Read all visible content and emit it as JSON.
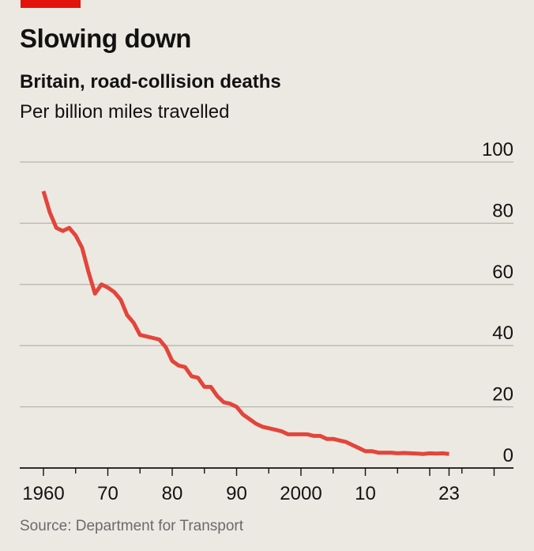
{
  "header": {
    "title": "Slowing down",
    "subtitle": "Britain, road-collision deaths",
    "unit": "Per billion miles travelled",
    "accent_color": "#e3120b"
  },
  "footer": {
    "source": "Source: Department for Transport"
  },
  "chart_data": {
    "type": "line",
    "title": "Slowing down",
    "subtitle": "Britain, road-collision deaths",
    "ylabel": "Per billion miles travelled",
    "xlabel": "",
    "xlim": [
      1959,
      2034
    ],
    "ylim": [
      0,
      100
    ],
    "y_ticks": [
      0,
      20,
      40,
      60,
      80,
      100
    ],
    "y_tick_labels": [
      "0",
      "20",
      "40",
      "60",
      "80",
      "100"
    ],
    "y_axis_side": "right",
    "x_ticks": [
      1960,
      1970,
      1980,
      1990,
      2000,
      2010,
      2023
    ],
    "x_tick_labels": [
      "1960",
      "70",
      "80",
      "90",
      "2000",
      "10",
      "23"
    ],
    "grid": true,
    "line_color": "#e3453a",
    "series": [
      {
        "values": [
          [
            1960,
            90.5
          ],
          [
            1961,
            83.5
          ],
          [
            1962,
            78.5
          ],
          [
            1963,
            77.5
          ],
          [
            1964,
            78.5
          ],
          [
            1965,
            76.0
          ],
          [
            1966,
            72.0
          ],
          [
            1967,
            64.0
          ],
          [
            1968,
            57.0
          ],
          [
            1969,
            60.0
          ],
          [
            1970,
            59.0
          ],
          [
            1971,
            57.5
          ],
          [
            1972,
            55.0
          ],
          [
            1973,
            50.0
          ],
          [
            1974,
            47.5
          ],
          [
            1975,
            43.5
          ],
          [
            1976,
            43.0
          ],
          [
            1977,
            42.5
          ],
          [
            1978,
            42.0
          ],
          [
            1979,
            39.5
          ],
          [
            1980,
            35.0
          ],
          [
            1981,
            33.5
          ],
          [
            1982,
            33.0
          ],
          [
            1983,
            30.0
          ],
          [
            1984,
            29.5
          ],
          [
            1985,
            26.5
          ],
          [
            1986,
            26.5
          ],
          [
            1987,
            23.5
          ],
          [
            1988,
            21.5
          ],
          [
            1989,
            21.0
          ],
          [
            1990,
            20.0
          ],
          [
            1991,
            17.5
          ],
          [
            1992,
            16.0
          ],
          [
            1993,
            14.5
          ],
          [
            1994,
            13.5
          ],
          [
            1995,
            13.0
          ],
          [
            1996,
            12.5
          ],
          [
            1997,
            12.0
          ],
          [
            1998,
            11.0
          ],
          [
            1999,
            11.0
          ],
          [
            2000,
            11.0
          ],
          [
            2001,
            11.0
          ],
          [
            2002,
            10.5
          ],
          [
            2003,
            10.5
          ],
          [
            2004,
            9.5
          ],
          [
            2005,
            9.5
          ],
          [
            2006,
            9.0
          ],
          [
            2007,
            8.5
          ],
          [
            2008,
            7.5
          ],
          [
            2009,
            6.5
          ],
          [
            2010,
            5.5
          ],
          [
            2011,
            5.5
          ],
          [
            2012,
            5.0
          ],
          [
            2013,
            5.0
          ],
          [
            2014,
            5.0
          ],
          [
            2015,
            4.8
          ],
          [
            2016,
            4.9
          ],
          [
            2017,
            4.8
          ],
          [
            2018,
            4.7
          ],
          [
            2019,
            4.6
          ],
          [
            2020,
            4.8
          ],
          [
            2021,
            4.7
          ],
          [
            2022,
            4.8
          ],
          [
            2023,
            4.6
          ]
        ]
      }
    ]
  }
}
